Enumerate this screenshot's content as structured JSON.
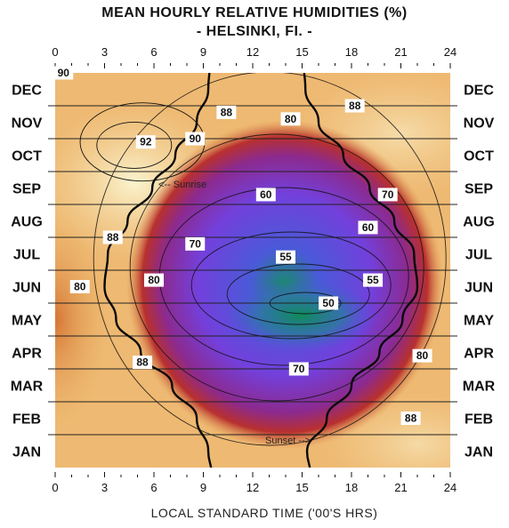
{
  "chart_data": {
    "type": "heatmap",
    "title": "MEAN HOURLY RELATIVE HUMIDITIES (%)",
    "subtitle": "- HELSINKI, FI. -",
    "xlabel": "LOCAL STANDARD TIME ('00'S HRS)",
    "xlim": [
      0,
      24
    ],
    "x_ticks": [
      "0",
      "3",
      "6",
      "9",
      "12",
      "15",
      "18",
      "21",
      "24"
    ],
    "months": [
      "JAN",
      "FEB",
      "MAR",
      "APR",
      "MAY",
      "JUN",
      "JUL",
      "AUG",
      "SEP",
      "OCT",
      "NOV",
      "DEC"
    ],
    "contour_labels": [
      {
        "value": "90",
        "hour": 0.5,
        "month": 12.0
      },
      {
        "value": "88",
        "hour": 18.2,
        "month": 11.0
      },
      {
        "value": "88",
        "hour": 10.4,
        "month": 10.8
      },
      {
        "value": "80",
        "hour": 14.3,
        "month": 10.6
      },
      {
        "value": "92",
        "hour": 5.5,
        "month": 9.9
      },
      {
        "value": "90",
        "hour": 8.5,
        "month": 10.0
      },
      {
        "value": "60",
        "hour": 12.8,
        "month": 8.3
      },
      {
        "value": "70",
        "hour": 20.2,
        "month": 8.3
      },
      {
        "value": "60",
        "hour": 19.0,
        "month": 7.3
      },
      {
        "value": "88",
        "hour": 3.5,
        "month": 7.0
      },
      {
        "value": "70",
        "hour": 8.5,
        "month": 6.8
      },
      {
        "value": "55",
        "hour": 14.0,
        "month": 6.4
      },
      {
        "value": "80",
        "hour": 1.5,
        "month": 5.5
      },
      {
        "value": "80",
        "hour": 6.0,
        "month": 5.7
      },
      {
        "value": "55",
        "hour": 19.3,
        "month": 5.7
      },
      {
        "value": "50",
        "hour": 16.6,
        "month": 5.0
      },
      {
        "value": "88",
        "hour": 5.3,
        "month": 3.2
      },
      {
        "value": "80",
        "hour": 22.3,
        "month": 3.4
      },
      {
        "value": "70",
        "hour": 14.8,
        "month": 3.0
      },
      {
        "value": "88",
        "hour": 21.6,
        "month": 1.5
      }
    ],
    "annotations": [
      {
        "text": "<-- Sunrise",
        "hour": 6.3,
        "month": 9.8
      },
      {
        "text": "Sunset -->",
        "hour": 14.2,
        "month": 1.4
      }
    ],
    "sunrise": [
      {
        "month": 0.5,
        "hour": 9.3
      },
      {
        "month": 1.5,
        "hour": 8.6
      },
      {
        "month": 2.5,
        "hour": 7.1
      },
      {
        "month": 3.5,
        "hour": 5.2
      },
      {
        "month": 4.5,
        "hour": 3.7
      },
      {
        "month": 5.5,
        "hour": 3.0
      },
      {
        "month": 6.5,
        "hour": 3.2
      },
      {
        "month": 7.5,
        "hour": 4.4
      },
      {
        "month": 8.5,
        "hour": 5.9
      },
      {
        "month": 9.5,
        "hour": 7.3
      },
      {
        "month": 10.5,
        "hour": 8.6
      },
      {
        "month": 11.5,
        "hour": 9.3
      },
      {
        "month": 12.3,
        "hour": 9.4
      }
    ],
    "sunset": [
      {
        "month": 0.5,
        "hour": 15.3
      },
      {
        "month": 1.5,
        "hour": 16.5
      },
      {
        "month": 2.5,
        "hour": 18.0
      },
      {
        "month": 3.5,
        "hour": 19.7
      },
      {
        "month": 4.5,
        "hour": 21.1
      },
      {
        "month": 5.5,
        "hour": 22.0
      },
      {
        "month": 6.5,
        "hour": 21.8
      },
      {
        "month": 7.5,
        "hour": 20.6
      },
      {
        "month": 8.5,
        "hour": 19.1
      },
      {
        "month": 9.5,
        "hour": 17.5
      },
      {
        "month": 10.5,
        "hour": 16.0
      },
      {
        "month": 11.5,
        "hour": 15.2
      },
      {
        "month": 12.3,
        "hour": 15.1
      }
    ],
    "color_scale": {
      "low": "#1f8a6f",
      "mid_low": "#5a4ee0",
      "mid": "#7a3bd6",
      "mid_high": "#a3305e",
      "high": "#e6a85a",
      "very_high": "#f5e2b0"
    },
    "grid": true
  }
}
